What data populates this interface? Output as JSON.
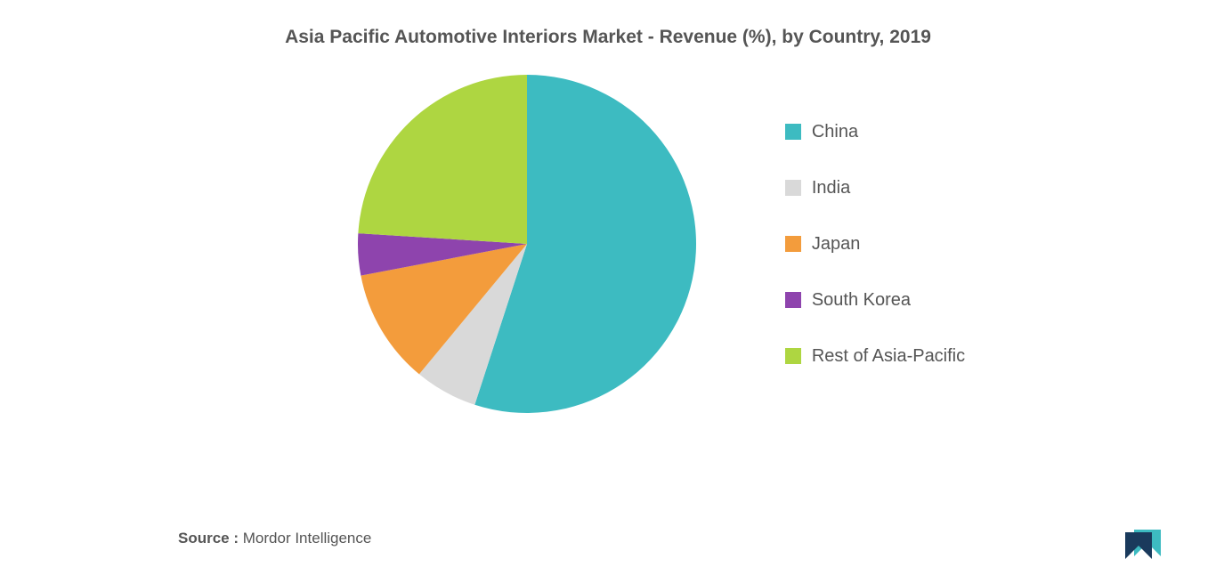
{
  "chart": {
    "type": "pie",
    "title": "Asia Pacific Automotive Interiors Market - Revenue (%), by Country, 2019",
    "title_fontsize": 21,
    "title_color": "#555555",
    "background_color": "#ffffff",
    "slices": [
      {
        "label": "China",
        "value": 55,
        "color": "#3dbbc1"
      },
      {
        "label": "India",
        "value": 6,
        "color": "#d9d9d9"
      },
      {
        "label": "Japan",
        "value": 11,
        "color": "#f39c3c"
      },
      {
        "label": "South Korea",
        "value": 4,
        "color": "#8e44ad"
      },
      {
        "label": "Rest of Asia-Pacific",
        "value": 24,
        "color": "#aed641"
      }
    ],
    "pie_radius": 190,
    "legend_fontsize": 20,
    "legend_color": "#555555",
    "legend_swatch_size": 18,
    "source_label": "Source :",
    "source_value": "Mordor Intelligence",
    "source_fontsize": 17,
    "logo_colors": {
      "front": "#1a3a5c",
      "back": "#3dbbc1"
    }
  }
}
